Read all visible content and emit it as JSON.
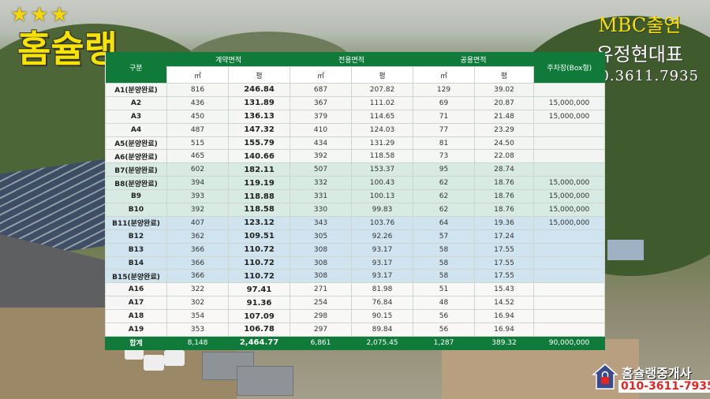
{
  "branding": {
    "stars": "★★★",
    "logo": "홈슐랭",
    "mbc_line1": "MBC출연",
    "mbc_line2": "유정현대표",
    "phone_top": "010.3611.7935",
    "badge_name": "홈슐랭중개사",
    "badge_phone": "010-3611-7935"
  },
  "table": {
    "header_row1": {
      "lot": "구분",
      "contract_area": "계약면적",
      "exclusive_area": "전용면적",
      "common_area": "공용면적",
      "parking": "주차장(Box형)"
    },
    "unit_sqm": "㎡",
    "unit_pyeong": "평",
    "rows": [
      {
        "lot": "A1(분양완료)",
        "c_sqm": "816",
        "c_py": "246.84",
        "e_sqm": "687",
        "e_py": "207.82",
        "p_sqm": "129",
        "p_py": "39.02",
        "parking": "",
        "style": ""
      },
      {
        "lot": "A2",
        "c_sqm": "436",
        "c_py": "131.89",
        "e_sqm": "367",
        "e_py": "111.02",
        "p_sqm": "69",
        "p_py": "20.87",
        "parking": "15,000,000",
        "style": ""
      },
      {
        "lot": "A3",
        "c_sqm": "450",
        "c_py": "136.13",
        "e_sqm": "379",
        "e_py": "114.65",
        "p_sqm": "71",
        "p_py": "21.48",
        "parking": "15,000,000",
        "style": ""
      },
      {
        "lot": "A4",
        "c_sqm": "487",
        "c_py": "147.32",
        "e_sqm": "410",
        "e_py": "124.03",
        "p_sqm": "77",
        "p_py": "23.29",
        "parking": "",
        "style": ""
      },
      {
        "lot": "A5(분양완료)",
        "c_sqm": "515",
        "c_py": "155.79",
        "e_sqm": "434",
        "e_py": "131.29",
        "p_sqm": "81",
        "p_py": "24.50",
        "parking": "",
        "style": ""
      },
      {
        "lot": "A6(분양완료)",
        "c_sqm": "465",
        "c_py": "140.66",
        "e_sqm": "392",
        "e_py": "118.58",
        "p_sqm": "73",
        "p_py": "22.08",
        "parking": "",
        "style": ""
      },
      {
        "lot": "B7(분양완료)",
        "c_sqm": "602",
        "c_py": "182.11",
        "e_sqm": "507",
        "e_py": "153.37",
        "p_sqm": "95",
        "p_py": "28.74",
        "parking": "",
        "style": "green"
      },
      {
        "lot": "B8(분양완료)",
        "c_sqm": "394",
        "c_py": "119.19",
        "e_sqm": "332",
        "e_py": "100.43",
        "p_sqm": "62",
        "p_py": "18.76",
        "parking": "15,000,000",
        "style": "green"
      },
      {
        "lot": "B9",
        "c_sqm": "393",
        "c_py": "118.88",
        "e_sqm": "331",
        "e_py": "100.13",
        "p_sqm": "62",
        "p_py": "18.76",
        "parking": "15,000,000",
        "style": "green"
      },
      {
        "lot": "B10",
        "c_sqm": "392",
        "c_py": "118.58",
        "e_sqm": "330",
        "e_py": "99.83",
        "p_sqm": "62",
        "p_py": "18.76",
        "parking": "15,000,000",
        "style": "green"
      },
      {
        "lot": "B11(분양완료)",
        "c_sqm": "407",
        "c_py": "123.12",
        "e_sqm": "343",
        "e_py": "103.76",
        "p_sqm": "64",
        "p_py": "19.36",
        "parking": "15,000,000",
        "style": "green"
      },
      {
        "lot": "B12",
        "c_sqm": "362",
        "c_py": "109.51",
        "e_sqm": "305",
        "e_py": "92.26",
        "p_sqm": "57",
        "p_py": "17.24",
        "parking": "",
        "style": "green"
      },
      {
        "lot": "B13",
        "c_sqm": "366",
        "c_py": "110.72",
        "e_sqm": "308",
        "e_py": "93.17",
        "p_sqm": "58",
        "p_py": "17.55",
        "parking": "",
        "style": "green"
      },
      {
        "lot": "B14",
        "c_sqm": "366",
        "c_py": "110.72",
        "e_sqm": "308",
        "e_py": "93.17",
        "p_sqm": "58",
        "p_py": "17.55",
        "parking": "",
        "style": "green"
      },
      {
        "lot": "B15(분양완료)",
        "c_sqm": "366",
        "c_py": "110.72",
        "e_sqm": "308",
        "e_py": "93.17",
        "p_sqm": "58",
        "p_py": "17.55",
        "parking": "",
        "style": "green"
      },
      {
        "lot": "A16",
        "c_sqm": "322",
        "c_py": "97.41",
        "e_sqm": "271",
        "e_py": "81.98",
        "p_sqm": "51",
        "p_py": "15.43",
        "parking": "",
        "style": ""
      },
      {
        "lot": "A17",
        "c_sqm": "302",
        "c_py": "91.36",
        "e_sqm": "254",
        "e_py": "76.84",
        "p_sqm": "48",
        "p_py": "14.52",
        "parking": "",
        "style": ""
      },
      {
        "lot": "A18",
        "c_sqm": "354",
        "c_py": "107.09",
        "e_sqm": "298",
        "e_py": "90.15",
        "p_sqm": "56",
        "p_py": "16.94",
        "parking": "",
        "style": ""
      },
      {
        "lot": "A19",
        "c_sqm": "353",
        "c_py": "106.78",
        "e_sqm": "297",
        "e_py": "89.84",
        "p_sqm": "56",
        "p_py": "16.94",
        "parking": "",
        "style": ""
      },
      {
        "lot": "합계",
        "c_sqm": "8,148",
        "c_py": "2,464.77",
        "e_sqm": "6,861",
        "e_py": "2,075.45",
        "p_sqm": "1,287",
        "p_py": "389.32",
        "parking": "90,000,000",
        "style": "total"
      }
    ]
  },
  "colors": {
    "header_green": "#0f7a3a",
    "logo_yellow": "#f6e400",
    "row_green": "#d7ebe2",
    "row_blue": "#cfe4ef",
    "badge_red": "#e52424"
  }
}
